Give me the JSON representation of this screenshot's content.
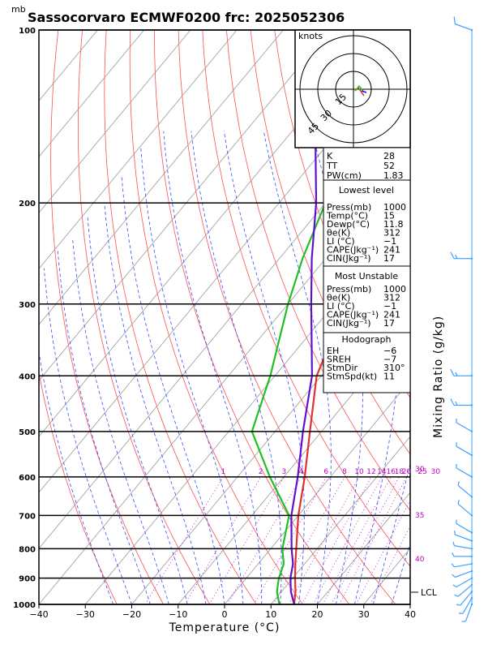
{
  "chart_data": {
    "type": "line",
    "title": "Sassocorvaro ECMWF0200 frc: 2025052306",
    "pressure_unit": "mb",
    "xlabel": "Temperature (°C)",
    "right_label": "Mixing Ratio (g/kg)",
    "xlim": [
      -40,
      40
    ],
    "plim": [
      1000,
      100
    ],
    "x_ticks": [
      "−40",
      "−30",
      "−20",
      "−10",
      "0",
      "10",
      "20",
      "30",
      "40"
    ],
    "p_ticks": [
      "100",
      "200",
      "300",
      "400",
      "500",
      "600",
      "700",
      "800",
      "900",
      "1000"
    ],
    "mixing_ratio_labels": [
      "1",
      "2",
      "3",
      "4",
      "6",
      "8",
      "10",
      "12",
      "14",
      "16",
      "18",
      "20",
      "25",
      "30"
    ],
    "moist_adiabat_labels": [
      "30",
      "35",
      "40"
    ],
    "lcl_label": "LCL",
    "hodograph": {
      "units": "knots",
      "rings": [
        "15",
        "30",
        "45"
      ]
    },
    "series": [
      {
        "name": "Temperature",
        "color": "#e03030",
        "points": [
          [
            1000,
            15
          ],
          [
            950,
            13
          ],
          [
            900,
            10.5
          ],
          [
            850,
            8
          ],
          [
            800,
            5.5
          ],
          [
            700,
            0
          ],
          [
            600,
            -5.5
          ],
          [
            500,
            -12.5
          ],
          [
            400,
            -21
          ],
          [
            350,
            -24
          ],
          [
            300,
            -27.5
          ],
          [
            250,
            -33
          ],
          [
            200,
            -40
          ],
          [
            150,
            -49
          ],
          [
            100,
            -62
          ]
        ]
      },
      {
        "name": "Dewpoint",
        "color": "#20c020",
        "points": [
          [
            1000,
            11.8
          ],
          [
            950,
            9
          ],
          [
            900,
            7
          ],
          [
            850,
            5.5
          ],
          [
            800,
            2.5
          ],
          [
            700,
            -2
          ],
          [
            600,
            -13
          ],
          [
            500,
            -25
          ],
          [
            400,
            -31
          ],
          [
            300,
            -40
          ],
          [
            250,
            -45
          ],
          [
            200,
            -50
          ],
          [
            150,
            -60
          ],
          [
            100,
            -70
          ]
        ]
      },
      {
        "name": "Parcel",
        "color": "#6010d0",
        "points": [
          [
            1000,
            15
          ],
          [
            950,
            12
          ],
          [
            900,
            9.5
          ],
          [
            850,
            7.5
          ],
          [
            800,
            4.5
          ],
          [
            700,
            -1.5
          ],
          [
            600,
            -7
          ],
          [
            500,
            -14
          ],
          [
            400,
            -22
          ],
          [
            300,
            -35
          ],
          [
            250,
            -43
          ],
          [
            200,
            -52
          ],
          [
            150,
            -65
          ],
          [
            100,
            -82
          ]
        ]
      }
    ],
    "wind_barbs": [
      {
        "p": 1000,
        "dir": 200,
        "spd": 5
      },
      {
        "p": 975,
        "dir": 210,
        "spd": 5
      },
      {
        "p": 950,
        "dir": 220,
        "spd": 5
      },
      {
        "p": 925,
        "dir": 230,
        "spd": 5
      },
      {
        "p": 900,
        "dir": 240,
        "spd": 5
      },
      {
        "p": 875,
        "dir": 250,
        "spd": 5
      },
      {
        "p": 850,
        "dir": 260,
        "spd": 5
      },
      {
        "p": 825,
        "dir": 270,
        "spd": 5
      },
      {
        "p": 800,
        "dir": 280,
        "spd": 5
      },
      {
        "p": 775,
        "dir": 290,
        "spd": 5
      },
      {
        "p": 750,
        "dir": 300,
        "spd": 5
      },
      {
        "p": 700,
        "dir": 310,
        "spd": 5
      },
      {
        "p": 650,
        "dir": 310,
        "spd": 5
      },
      {
        "p": 600,
        "dir": 300,
        "spd": 5
      },
      {
        "p": 550,
        "dir": 300,
        "spd": 5
      },
      {
        "p": 500,
        "dir": 300,
        "spd": 5
      },
      {
        "p": 450,
        "dir": 270,
        "spd": 15
      },
      {
        "p": 400,
        "dir": 270,
        "spd": 15
      },
      {
        "p": 250,
        "dir": 270,
        "spd": 15
      },
      {
        "p": 100,
        "dir": 290,
        "spd": 10
      }
    ]
  },
  "indices": [
    {
      "label": "K",
      "value": "28"
    },
    {
      "label": "TT",
      "value": "52"
    },
    {
      "label": "PW(cm)",
      "value": "1.83"
    }
  ],
  "lowest_level": {
    "title": "Lowest level",
    "rows": [
      {
        "label": "Press(mb)",
        "value": "1000"
      },
      {
        "label": "Temp(°C)",
        "value": "15"
      },
      {
        "label": "Dewp(°C)",
        "value": "11.8"
      },
      {
        "label": "θe(K)",
        "value": "312"
      },
      {
        "label": "LI (°C)",
        "value": "−1"
      },
      {
        "label": "CAPE(Jkg⁻¹)",
        "value": "241"
      },
      {
        "label": "CIN(Jkg⁻¹)",
        "value": "17"
      }
    ]
  },
  "most_unstable": {
    "title": "Most Unstable",
    "rows": [
      {
        "label": "Press(mb)",
        "value": "1000"
      },
      {
        "label": "θe(K)",
        "value": "312"
      },
      {
        "label": "LI (°C)",
        "value": "−1"
      },
      {
        "label": "CAPE(Jkg⁻¹)",
        "value": "241"
      },
      {
        "label": "CIN(Jkg⁻¹)",
        "value": "17"
      }
    ]
  },
  "hodograph_table": {
    "title": "Hodograph",
    "rows": [
      {
        "label": "EH",
        "value": "−6"
      },
      {
        "label": "SREH",
        "value": "−7"
      },
      {
        "label": "StmDir",
        "value": "310°"
      },
      {
        "label": "StmSpd(kt)",
        "value": "11"
      }
    ]
  }
}
